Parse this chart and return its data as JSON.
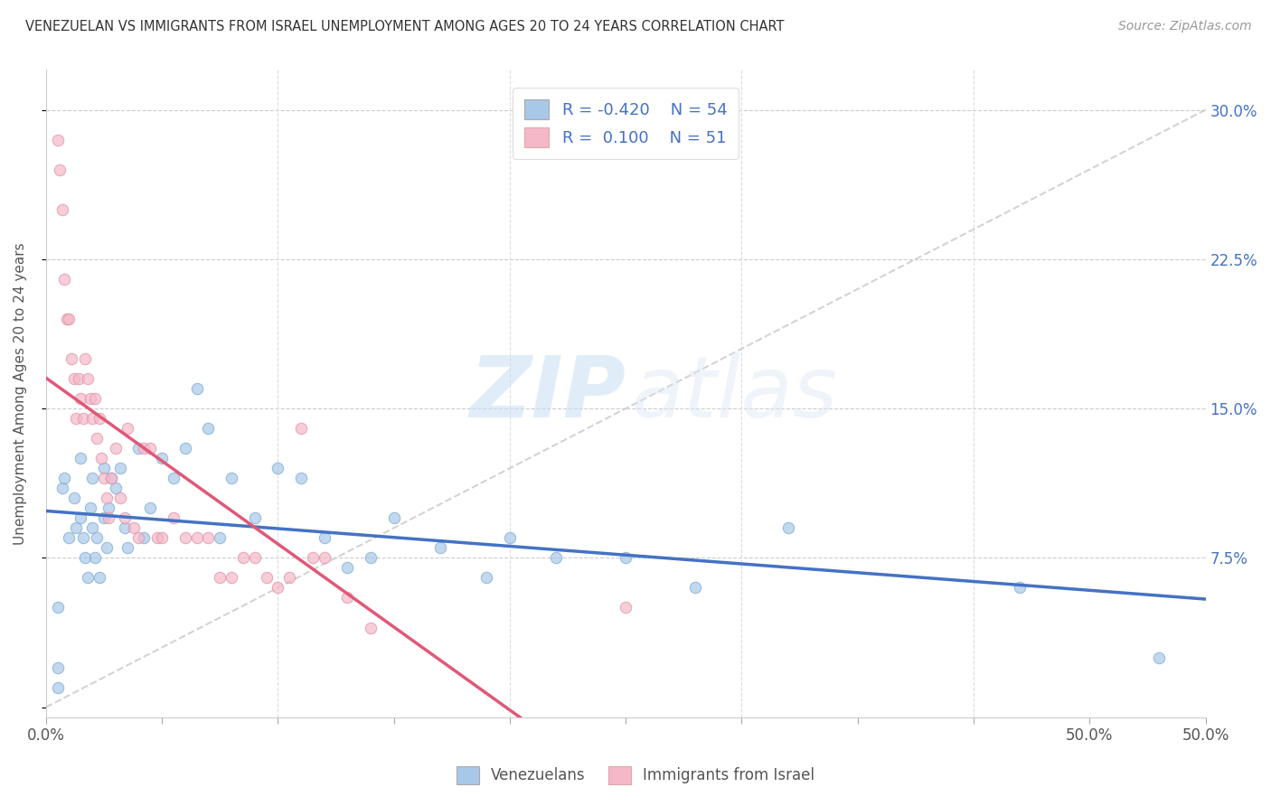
{
  "title": "VENEZUELAN VS IMMIGRANTS FROM ISRAEL UNEMPLOYMENT AMONG AGES 20 TO 24 YEARS CORRELATION CHART",
  "source": "Source: ZipAtlas.com",
  "ylabel": "Unemployment Among Ages 20 to 24 years",
  "x_ticks": [
    0.0,
    0.05,
    0.1,
    0.15,
    0.2,
    0.25,
    0.3,
    0.35,
    0.4,
    0.45,
    0.5
  ],
  "x_tick_labels_show": {
    "0.0": "0.0%",
    "0.5": "50.0%"
  },
  "y_ticks": [
    0.0,
    0.075,
    0.15,
    0.225,
    0.3
  ],
  "y_tick_labels_right": [
    "",
    "7.5%",
    "15.0%",
    "22.5%",
    "30.0%"
  ],
  "xlim": [
    0.0,
    0.5
  ],
  "ylim": [
    -0.005,
    0.32
  ],
  "R_venezuelan": -0.42,
  "N_venezuelan": 54,
  "R_israel": 0.1,
  "N_israel": 51,
  "legend_labels_bottom": [
    "Venezuelans",
    "Immigrants from Israel"
  ],
  "watermark_zip": "ZIP",
  "watermark_atlas": "atlas",
  "dot_color_venezuelan": "#a8c8e8",
  "dot_color_israel": "#f4b8c8",
  "line_color_venezuelan": "#4472c4",
  "line_color_israel": "#e05878",
  "line_color_diagonal": "#c8c8c8",
  "venezuelan_x": [
    0.005,
    0.005,
    0.005,
    0.007,
    0.008,
    0.01,
    0.012,
    0.013,
    0.015,
    0.015,
    0.016,
    0.017,
    0.018,
    0.019,
    0.02,
    0.02,
    0.021,
    0.022,
    0.023,
    0.025,
    0.025,
    0.026,
    0.027,
    0.028,
    0.03,
    0.032,
    0.034,
    0.035,
    0.04,
    0.042,
    0.045,
    0.05,
    0.055,
    0.06,
    0.065,
    0.07,
    0.075,
    0.08,
    0.09,
    0.1,
    0.11,
    0.12,
    0.13,
    0.14,
    0.15,
    0.17,
    0.19,
    0.2,
    0.22,
    0.25,
    0.28,
    0.32,
    0.42,
    0.48
  ],
  "venezuelan_y": [
    0.02,
    0.05,
    0.01,
    0.11,
    0.115,
    0.085,
    0.105,
    0.09,
    0.125,
    0.095,
    0.085,
    0.075,
    0.065,
    0.1,
    0.115,
    0.09,
    0.075,
    0.085,
    0.065,
    0.095,
    0.12,
    0.08,
    0.1,
    0.115,
    0.11,
    0.12,
    0.09,
    0.08,
    0.13,
    0.085,
    0.1,
    0.125,
    0.115,
    0.13,
    0.16,
    0.14,
    0.085,
    0.115,
    0.095,
    0.12,
    0.115,
    0.085,
    0.07,
    0.075,
    0.095,
    0.08,
    0.065,
    0.085,
    0.075,
    0.075,
    0.06,
    0.09,
    0.06,
    0.025
  ],
  "israel_x": [
    0.005,
    0.006,
    0.007,
    0.008,
    0.009,
    0.01,
    0.011,
    0.012,
    0.013,
    0.014,
    0.015,
    0.016,
    0.017,
    0.018,
    0.019,
    0.02,
    0.021,
    0.022,
    0.023,
    0.024,
    0.025,
    0.026,
    0.027,
    0.028,
    0.03,
    0.032,
    0.034,
    0.035,
    0.038,
    0.04,
    0.042,
    0.045,
    0.048,
    0.05,
    0.055,
    0.06,
    0.065,
    0.07,
    0.075,
    0.08,
    0.085,
    0.09,
    0.095,
    0.1,
    0.105,
    0.11,
    0.115,
    0.12,
    0.13,
    0.14,
    0.25
  ],
  "israel_y": [
    0.285,
    0.27,
    0.25,
    0.215,
    0.195,
    0.195,
    0.175,
    0.165,
    0.145,
    0.165,
    0.155,
    0.145,
    0.175,
    0.165,
    0.155,
    0.145,
    0.155,
    0.135,
    0.145,
    0.125,
    0.115,
    0.105,
    0.095,
    0.115,
    0.13,
    0.105,
    0.095,
    0.14,
    0.09,
    0.085,
    0.13,
    0.13,
    0.085,
    0.085,
    0.095,
    0.085,
    0.085,
    0.085,
    0.065,
    0.065,
    0.075,
    0.075,
    0.065,
    0.06,
    0.065,
    0.14,
    0.075,
    0.075,
    0.055,
    0.04,
    0.05
  ]
}
